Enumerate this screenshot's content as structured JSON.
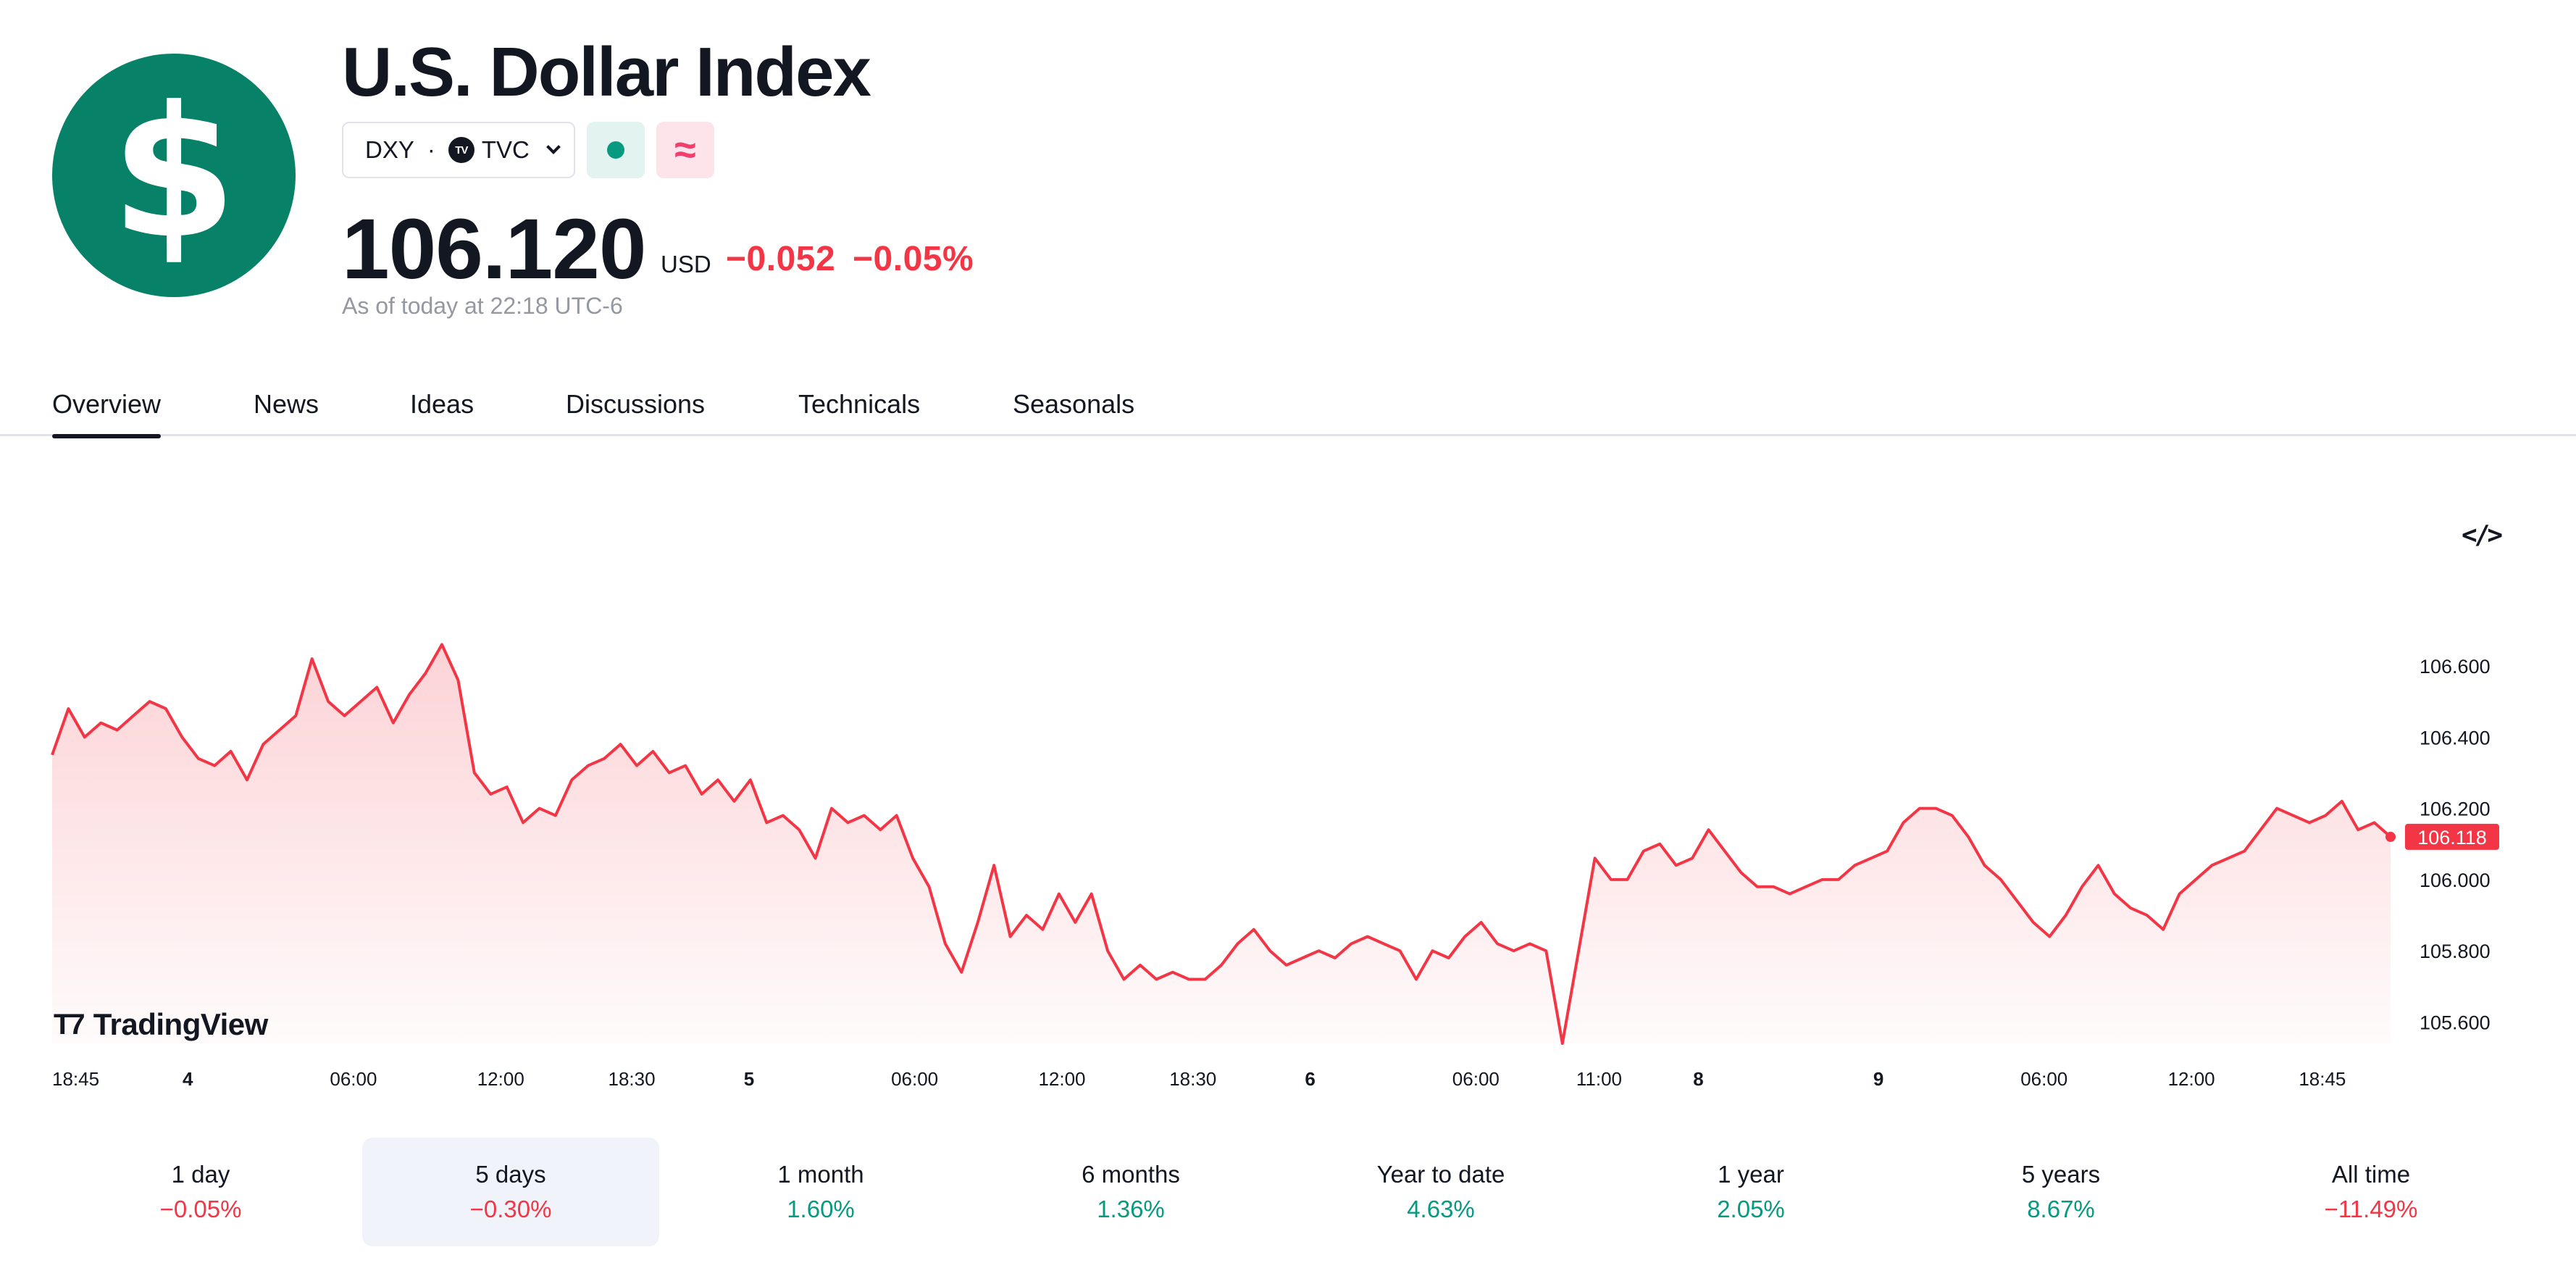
{
  "header": {
    "logo_glyph": "$",
    "title": "U.S. Dollar Index",
    "symbol": "DXY",
    "separator": "·",
    "exchange_badge": "TV",
    "exchange": "TVC",
    "delay_glyph": "≈",
    "price": "106.120",
    "currency": "USD",
    "change": "−0.052",
    "change_pct": "−0.05%",
    "as_of": "As of today at 22:18 UTC-6"
  },
  "tabs": [
    {
      "label": "Overview",
      "active": true
    },
    {
      "label": "News"
    },
    {
      "label": "Ideas"
    },
    {
      "label": "Discussions"
    },
    {
      "label": "Technicals"
    },
    {
      "label": "Seasonals"
    }
  ],
  "embed_icon": "code-embed-icon",
  "watermark": "TradingView",
  "colors": {
    "brand_green": "#078167",
    "negative": "#f23645",
    "positive": "#089981"
  },
  "chart_data": {
    "type": "area",
    "y_ticks": [
      "106.600",
      "106.400",
      "106.200",
      "106.000",
      "105.800",
      "105.600"
    ],
    "y_tick_values": [
      106.6,
      106.4,
      106.2,
      106.0,
      105.8,
      105.6
    ],
    "ylim": [
      105.54,
      106.72
    ],
    "x_ticks": [
      {
        "label": "18:45",
        "bold": false
      },
      {
        "label": "4",
        "bold": true
      },
      {
        "label": "06:00",
        "bold": false
      },
      {
        "label": "12:00",
        "bold": false
      },
      {
        "label": "18:30",
        "bold": false
      },
      {
        "label": "5",
        "bold": true
      },
      {
        "label": "06:00",
        "bold": false
      },
      {
        "label": "12:00",
        "bold": false
      },
      {
        "label": "18:30",
        "bold": false
      },
      {
        "label": "6",
        "bold": true
      },
      {
        "label": "06:00",
        "bold": false
      },
      {
        "label": "11:00",
        "bold": false
      },
      {
        "label": "8",
        "bold": true
      },
      {
        "label": "9",
        "bold": true
      },
      {
        "label": "06:00",
        "bold": false
      },
      {
        "label": "12:00",
        "bold": false
      },
      {
        "label": "18:45",
        "bold": false
      }
    ],
    "x_tick_positions": [
      0.0,
      0.057,
      0.12,
      0.183,
      0.239,
      0.297,
      0.36,
      0.423,
      0.479,
      0.537,
      0.6,
      0.653,
      0.703,
      0.78,
      0.843,
      0.906,
      0.962
    ],
    "last_value": "106.118",
    "values": [
      106.35,
      106.48,
      106.4,
      106.44,
      106.42,
      106.46,
      106.5,
      106.48,
      106.4,
      106.34,
      106.32,
      106.36,
      106.28,
      106.38,
      106.42,
      106.46,
      106.62,
      106.5,
      106.46,
      106.5,
      106.54,
      106.44,
      106.52,
      106.58,
      106.66,
      106.56,
      106.3,
      106.24,
      106.26,
      106.16,
      106.2,
      106.18,
      106.28,
      106.32,
      106.34,
      106.38,
      106.32,
      106.36,
      106.3,
      106.32,
      106.24,
      106.28,
      106.22,
      106.28,
      106.16,
      106.18,
      106.14,
      106.06,
      106.2,
      106.16,
      106.18,
      106.14,
      106.18,
      106.06,
      105.98,
      105.82,
      105.74,
      105.88,
      106.04,
      105.84,
      105.9,
      105.86,
      105.96,
      105.88,
      105.96,
      105.8,
      105.72,
      105.76,
      105.72,
      105.74,
      105.72,
      105.72,
      105.76,
      105.82,
      105.86,
      105.8,
      105.76,
      105.78,
      105.8,
      105.78,
      105.82,
      105.84,
      105.82,
      105.8,
      105.72,
      105.8,
      105.78,
      105.84,
      105.88,
      105.82,
      105.8,
      105.82,
      105.8,
      105.54,
      105.8,
      106.06,
      106.0,
      106.0,
      106.08,
      106.1,
      106.04,
      106.06,
      106.14,
      106.08,
      106.02,
      105.98,
      105.98,
      105.96,
      105.98,
      106.0,
      106.0,
      106.04,
      106.06,
      106.08,
      106.16,
      106.2,
      106.2,
      106.18,
      106.12,
      106.04,
      106.0,
      105.94,
      105.88,
      105.84,
      105.9,
      105.98,
      106.04,
      105.96,
      105.92,
      105.9,
      105.86,
      105.96,
      106.0,
      106.04,
      106.06,
      106.08,
      106.14,
      106.2,
      106.18,
      106.16,
      106.18,
      106.22,
      106.14,
      106.16,
      106.12
    ],
    "series_color": "#f23645"
  },
  "ranges": [
    {
      "label": "1 day",
      "value": "−0.05%",
      "dir": "neg"
    },
    {
      "label": "5 days",
      "value": "−0.30%",
      "dir": "neg",
      "active": true
    },
    {
      "label": "1 month",
      "value": "1.60%",
      "dir": "pos"
    },
    {
      "label": "6 months",
      "value": "1.36%",
      "dir": "pos"
    },
    {
      "label": "Year to date",
      "value": "4.63%",
      "dir": "pos"
    },
    {
      "label": "1 year",
      "value": "2.05%",
      "dir": "pos"
    },
    {
      "label": "5 years",
      "value": "8.67%",
      "dir": "pos"
    },
    {
      "label": "All time",
      "value": "−11.49%",
      "dir": "neg"
    }
  ]
}
